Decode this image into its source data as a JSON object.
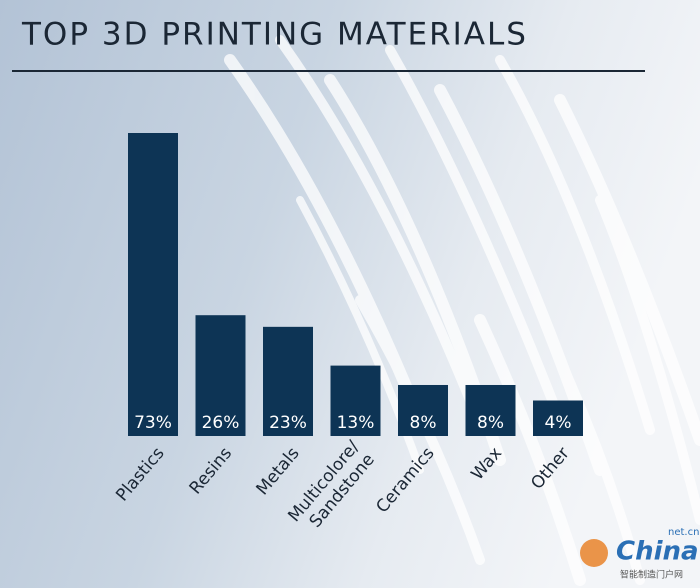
{
  "chart_data": {
    "type": "bar",
    "title": "TOP 3D PRINTING MATERIALS",
    "categories": [
      "Plastics",
      "Resins",
      "Metals",
      "Multicolore/\nSandstone",
      "Ceramics",
      "Wax",
      "Other"
    ],
    "values": [
      73,
      26,
      23,
      13,
      8,
      8,
      4
    ],
    "value_labels": [
      "73%",
      "26%",
      "23%",
      "13%",
      "8%",
      "8%",
      "4%"
    ],
    "color": "#0d3455"
  },
  "watermark": {
    "brand": "China",
    "domain": "net.cn",
    "tagline": "智能制造门户网"
  }
}
